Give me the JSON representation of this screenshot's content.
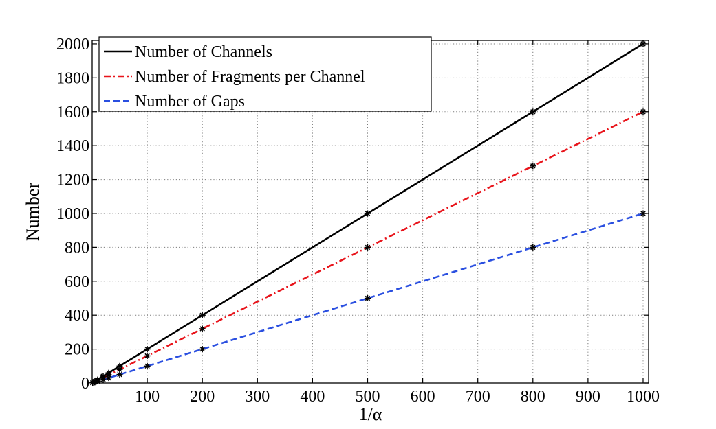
{
  "chart_data": {
    "type": "line",
    "title": "",
    "xlabel": "1/α",
    "ylabel": "Number",
    "xlim": [
      0,
      1010
    ],
    "ylim": [
      0,
      2020
    ],
    "xticks": [
      100,
      200,
      300,
      400,
      500,
      600,
      700,
      800,
      900,
      1000
    ],
    "yticks": [
      0,
      200,
      400,
      600,
      800,
      1000,
      1200,
      1400,
      1600,
      1800,
      2000
    ],
    "grid": true,
    "legend_position": "top-left",
    "x": [
      1,
      5,
      10,
      20,
      30,
      50,
      100,
      200,
      500,
      800,
      1000
    ],
    "series": [
      {
        "name": "Number of Channels",
        "color": "#000000",
        "style": "solid",
        "values": [
          2,
          10,
          20,
          40,
          60,
          100,
          200,
          400,
          1000,
          1600,
          2000
        ]
      },
      {
        "name": "Number of Fragments per Channel",
        "color": "#e8141b",
        "style": "dashdot",
        "values": [
          2,
          8,
          16,
          32,
          48,
          80,
          160,
          320,
          800,
          1280,
          1600
        ]
      },
      {
        "name": "Number of Gaps",
        "color": "#2a4fe0",
        "style": "dashed",
        "values": [
          1,
          5,
          10,
          20,
          30,
          50,
          100,
          200,
          500,
          800,
          1000
        ]
      }
    ]
  }
}
